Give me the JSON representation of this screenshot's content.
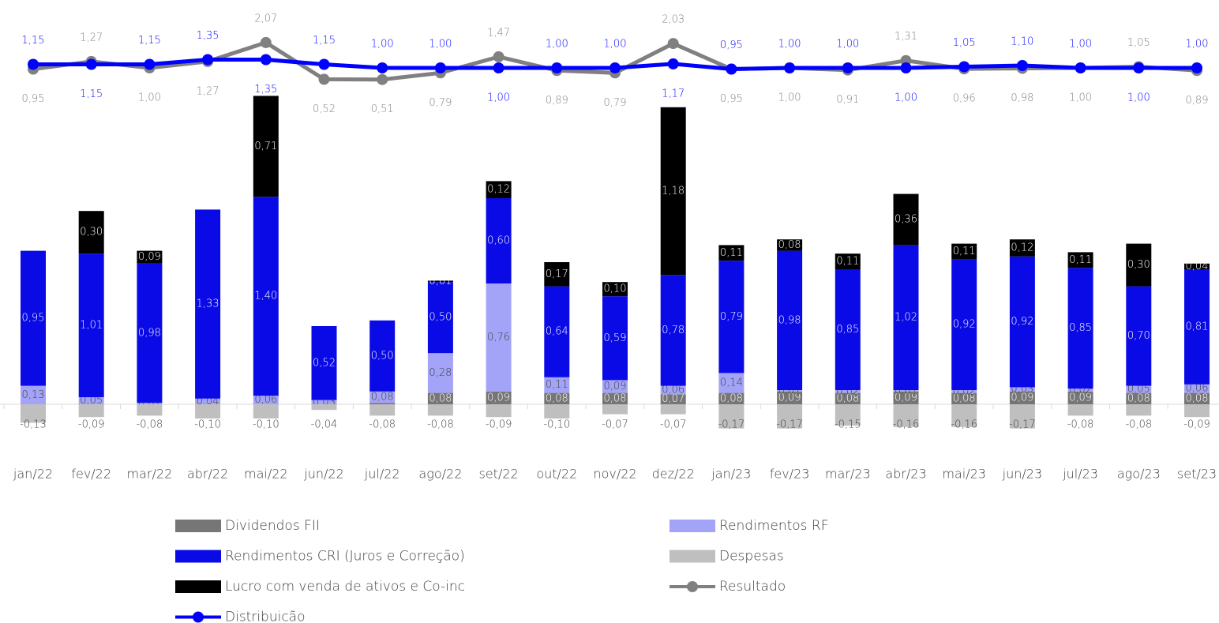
{
  "chart_data": {
    "type": "bar",
    "stacked": true,
    "categories": [
      "jan/22",
      "fev/22",
      "mar/22",
      "abr/22",
      "mai/22",
      "jun/22",
      "jul/22",
      "ago/22",
      "set/22",
      "out/22",
      "nov/22",
      "dez/22",
      "jan/23",
      "fev/23",
      "mar/23",
      "abr/23",
      "mai/23",
      "jun/23",
      "jul/23",
      "ago/23",
      "set/23"
    ],
    "ylim": [
      -0.2,
      2.8
    ],
    "y2lim": [
      -14.4,
      3.6
    ],
    "series": [
      {
        "name": "Dividendos FII",
        "color": "#767676",
        "values": [
          null,
          null,
          null,
          null,
          null,
          null,
          0.01,
          0.08,
          0.09,
          0.08,
          0.08,
          0.07,
          0.08,
          0.09,
          0.08,
          0.09,
          0.08,
          0.09,
          0.09,
          0.08,
          0.08
        ],
        "value_labels": [
          null,
          null,
          null,
          null,
          null,
          null,
          null,
          "0,08",
          "0,09",
          "0,08",
          "0,08",
          "0,07",
          "0,08",
          "0,09",
          "0,08",
          "0,09",
          "0,08",
          "0,09",
          "0,09",
          "0,08",
          "0,08"
        ]
      },
      {
        "name": "Rendimentos RF",
        "color": "#a3a3f7",
        "values": [
          0.13,
          0.05,
          0.01,
          0.04,
          0.06,
          0.03,
          0.08,
          0.28,
          0.76,
          0.11,
          0.09,
          0.06,
          0.14,
          0.01,
          0.02,
          0.01,
          0.02,
          0.03,
          0.02,
          0.05,
          0.06
        ],
        "value_labels": [
          "0,13",
          "0,05",
          "0,01",
          "0,04",
          "0,06",
          "0,03",
          "0,08",
          "0,28",
          "0,76",
          "0,11",
          "0,09",
          "0,06",
          "0,14",
          "0,01",
          "0,02",
          "0,01",
          "0,02",
          "0,03",
          "0,02",
          "0,05",
          "0,06"
        ]
      },
      {
        "name": "Rendimentos CRI (Juros e Correção)",
        "color": "#0a0ae6",
        "values": [
          0.95,
          1.01,
          0.98,
          1.33,
          1.4,
          0.52,
          0.5,
          0.5,
          0.6,
          0.64,
          0.59,
          0.78,
          0.79,
          0.98,
          0.85,
          1.02,
          0.92,
          0.92,
          0.85,
          0.7,
          0.81
        ],
        "value_labels": [
          "0,95",
          "1,01",
          "0,98",
          "1,33",
          "1,40",
          "0,52",
          "0,50",
          "0,50",
          "0,60",
          "0,64",
          "0,59",
          "0,78",
          "0,79",
          "0,98",
          "0,85",
          "1,02",
          "0,92",
          "0,92",
          "0,85",
          "0,70",
          "0,81"
        ]
      },
      {
        "name": "Despesas",
        "color": "#bfbfbf",
        "values": [
          -0.13,
          -0.09,
          -0.08,
          -0.1,
          -0.1,
          -0.04,
          -0.08,
          -0.08,
          -0.09,
          -0.1,
          -0.07,
          -0.07,
          -0.17,
          -0.17,
          -0.15,
          -0.16,
          -0.16,
          -0.17,
          -0.08,
          -0.08,
          -0.09
        ],
        "value_labels": [
          "-0,13",
          "-0,09",
          "-0,08",
          "-0,10",
          "-0,10",
          "-0,04",
          "-0,08",
          "-0,08",
          "-0,09",
          "-0,10",
          "-0,07",
          "-0,07",
          "-0,17",
          "-0,17",
          "-0,15",
          "-0,16",
          "-0,16",
          "-0,17",
          "-0,08",
          "-0,08",
          "-0,09"
        ]
      },
      {
        "name": "Lucro com venda de ativos e Co-inc",
        "color": "#000000",
        "values": [
          null,
          0.3,
          0.09,
          null,
          0.71,
          null,
          null,
          0.01,
          0.12,
          0.17,
          0.1,
          1.18,
          0.11,
          0.08,
          0.11,
          0.36,
          0.11,
          0.12,
          0.11,
          0.3,
          0.04
        ],
        "value_labels": [
          null,
          "0,30",
          "0,09",
          null,
          "0,71",
          null,
          null,
          "0,01",
          "0,12",
          "0,17",
          "0,10",
          "1,18",
          "0,11",
          "0,08",
          "0,11",
          "0,36",
          "0,11",
          "0,12",
          "0,11",
          "0,30",
          "0,04"
        ]
      },
      {
        "name": "Resultado",
        "color": "#808080",
        "type": "line",
        "axis": "y2",
        "values": [
          0.95,
          1.27,
          1.0,
          1.27,
          2.07,
          0.52,
          0.51,
          0.79,
          1.47,
          0.89,
          0.79,
          2.03,
          0.95,
          1.0,
          0.91,
          1.31,
          0.96,
          0.98,
          1.0,
          1.05,
          0.89
        ],
        "value_labels": [
          "0,95",
          "1,27",
          "1,00",
          "1,27",
          "2,07",
          "0,52",
          "0,51",
          "0,79",
          "1,47",
          "0,89",
          "0,79",
          "2,03",
          "0,95",
          "1,00",
          "0,91",
          "1,31",
          "0,96",
          "0,98",
          "1,00",
          "1,05",
          "0,89"
        ]
      },
      {
        "name": "Distribuicão",
        "color": "#0000ff",
        "type": "line",
        "axis": "y2",
        "values": [
          1.15,
          1.15,
          1.15,
          1.35,
          1.35,
          1.15,
          1.0,
          1.0,
          1.0,
          1.0,
          1.0,
          1.17,
          0.95,
          1.0,
          1.0,
          1.0,
          1.05,
          1.1,
          1.0,
          1.0,
          1.0
        ],
        "value_labels": [
          "1,15",
          "1,15",
          "1,15",
          "1,35",
          "1,35",
          "1,15",
          "1,00",
          "1,00",
          "1,00",
          "1,00",
          "1,00",
          "1,17",
          "0,95",
          "1,00",
          "1,00",
          "1,00",
          "1,05",
          "1,10",
          "1,00",
          "1,00",
          "1,00"
        ]
      }
    ]
  }
}
